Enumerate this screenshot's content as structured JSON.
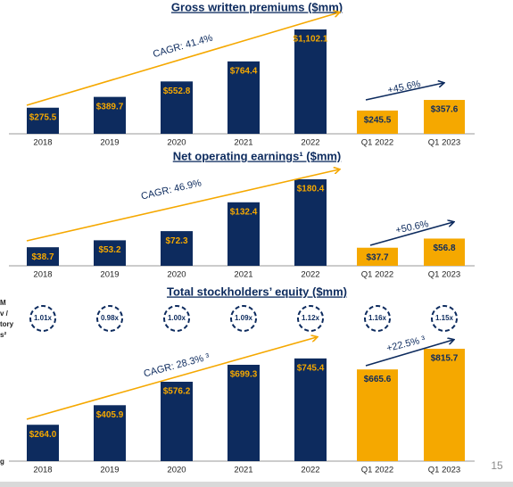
{
  "chart_data": [
    {
      "type": "bar",
      "title": "Gross written premiums ($mm)",
      "categories": [
        "2018",
        "2019",
        "2020",
        "2021",
        "2022",
        "Q1 2022",
        "Q1 2023"
      ],
      "values": [
        275.5,
        389.7,
        552.8,
        764.4,
        1102.1,
        245.5,
        357.6
      ],
      "value_labels": [
        "$275.5",
        "$389.7",
        "$552.8",
        "$764.4",
        "$1,102.1",
        "$245.5",
        "$357.6"
      ],
      "colors": [
        "#0d2b5e",
        "#0d2b5e",
        "#0d2b5e",
        "#0d2b5e",
        "#0d2b5e",
        "#f5a800",
        "#f5a800"
      ],
      "annotations": [
        "CAGR: 41.4%",
        "+45.6%"
      ]
    },
    {
      "type": "bar",
      "title": "Net operating earnings¹ ($mm)",
      "categories": [
        "2018",
        "2019",
        "2020",
        "2021",
        "2022",
        "Q1 2022",
        "Q1 2023"
      ],
      "values": [
        38.7,
        53.2,
        72.3,
        132.4,
        180.4,
        37.7,
        56.8
      ],
      "value_labels": [
        "$38.7",
        "$53.2",
        "$72.3",
        "$132.4",
        "$180.4",
        "$37.7",
        "$56.8"
      ],
      "colors": [
        "#0d2b5e",
        "#0d2b5e",
        "#0d2b5e",
        "#0d2b5e",
        "#0d2b5e",
        "#f5a800",
        "#f5a800"
      ],
      "annotations": [
        "CAGR: 46.9%",
        "+50.6%"
      ]
    },
    {
      "type": "bar",
      "title": "Total stockholders’ equity ($mm)",
      "categories": [
        "2018",
        "2019",
        "2020",
        "2021",
        "2022",
        "Q1 2022",
        "Q1 2023"
      ],
      "values": [
        264.0,
        405.9,
        576.2,
        699.3,
        745.4,
        665.6,
        815.7
      ],
      "value_labels": [
        "$264.0",
        "$405.9",
        "$576.2",
        "$699.3",
        "$745.4",
        "$665.6",
        "$815.7"
      ],
      "colors": [
        "#0d2b5e",
        "#0d2b5e",
        "#0d2b5e",
        "#0d2b5e",
        "#0d2b5e",
        "#f5a800",
        "#f5a800"
      ],
      "annotations": [
        "CAGR: 28.3% ³",
        "+22.5% ³"
      ],
      "multiple_labels": [
        "1.01x",
        "0.98x",
        "1.00x",
        "1.09x",
        "1.12x",
        "1.16x",
        "1.15x"
      ]
    }
  ],
  "side_labels": [
    "M",
    "v /",
    "tory",
    "s²",
    "g"
  ],
  "page_number": "15"
}
